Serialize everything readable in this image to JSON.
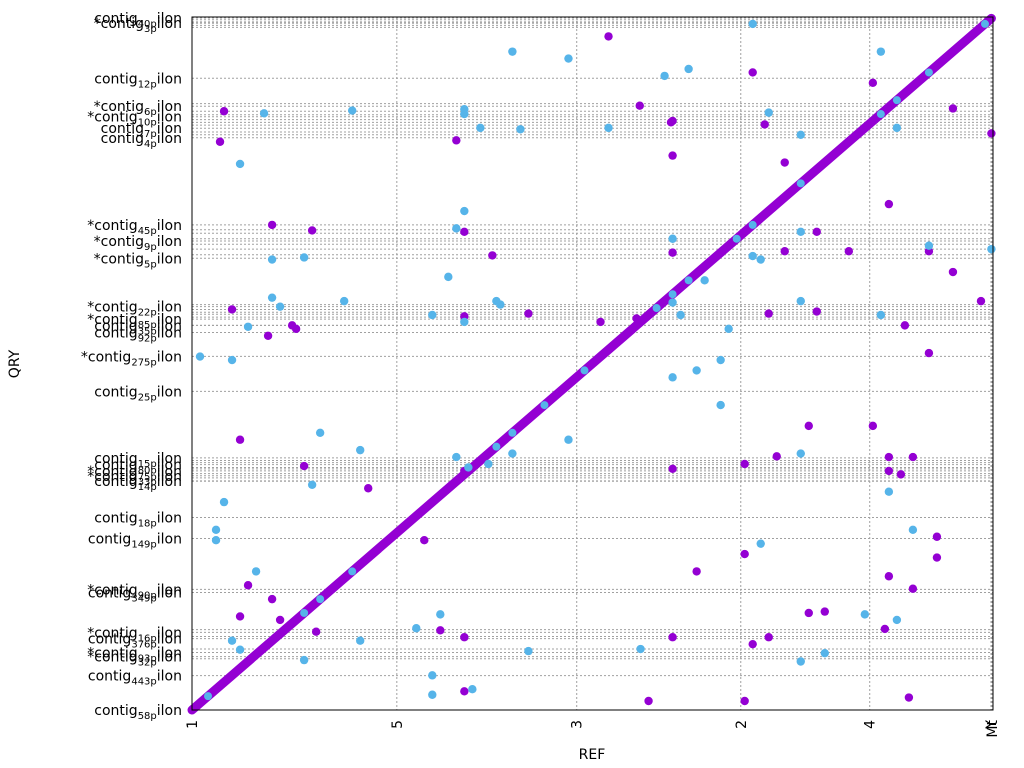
{
  "chart_data": {
    "type": "scatter",
    "xlabel": "REF",
    "ylabel": "QRY",
    "colors": {
      "forward": "#9400D3",
      "reverse": "#56B4E9"
    },
    "grid": true,
    "x_ticks": [
      {
        "label": "1",
        "pos": 0
      },
      {
        "label": "5",
        "pos": 0.2557
      },
      {
        "label": "3",
        "pos": 0.4803
      },
      {
        "label": "2",
        "pos": 0.6851
      },
      {
        "label": "4",
        "pos": 0.8461
      },
      {
        "label": "Y",
        "pos": 0.9976
      },
      {
        "label": "Mt",
        "pos": 0.999
      }
    ],
    "y_ticks": [
      {
        "main": "contig",
        "sub": "58",
        "tail": "ilon",
        "pos": 0.0
      },
      {
        "main": "contig",
        "sub": "443",
        "tail": "ilon",
        "pos": 0.0496
      },
      {
        "main": "*contig",
        "sub": "32",
        "tail": "ilon",
        "pos": 0.077
      },
      {
        "main": "*contig",
        "sub": "93",
        "tail": "ilon",
        "pos": 0.083
      },
      {
        "main": "contig",
        "sub": "376",
        "tail": "ilon",
        "pos": 0.103
      },
      {
        "main": "*contig",
        "sub": "16",
        "tail": "ilon",
        "pos": 0.112
      },
      {
        "main": "contig",
        "sub": "349",
        "tail": "ilon",
        "pos": 0.1696
      },
      {
        "main": "*contig",
        "sub": "90",
        "tail": "ilon",
        "pos": 0.174
      },
      {
        "main": "contig",
        "sub": "149",
        "tail": "ilon",
        "pos": 0.2474
      },
      {
        "main": "contig",
        "sub": "18",
        "tail": "ilon",
        "pos": 0.2777
      },
      {
        "main": "contig",
        "sub": "14",
        "tail": "ilon",
        "pos": 0.3306
      },
      {
        "main": "*contig",
        "sub": "33",
        "tail": "ilon",
        "pos": 0.338
      },
      {
        "main": "*contig",
        "sub": "75",
        "tail": "ilon",
        "pos": 0.345
      },
      {
        "main": "contig",
        "sub": "80",
        "tail": "ilon",
        "pos": 0.354
      },
      {
        "main": "contig",
        "sub": "15",
        "tail": "ilon",
        "pos": 0.3638
      },
      {
        "main": "contig",
        "sub": "25",
        "tail": "ilon",
        "pos": 0.4597
      },
      {
        "main": "*contig",
        "sub": "275",
        "tail": "ilon",
        "pos": 0.5102
      },
      {
        "main": "contig",
        "sub": "92",
        "tail": "ilon",
        "pos": 0.5448
      },
      {
        "main": "contig",
        "sub": "35",
        "tail": "ilon",
        "pos": 0.555
      },
      {
        "main": "*contig",
        "sub": "85",
        "tail": "ilon",
        "pos": 0.564
      },
      {
        "main": "*contig",
        "sub": "22",
        "tail": "ilon",
        "pos": 0.582
      },
      {
        "main": "*contig",
        "sub": "5",
        "tail": "ilon",
        "pos": 0.6518
      },
      {
        "main": "*contig",
        "sub": "9",
        "tail": "ilon",
        "pos": 0.6767
      },
      {
        "main": "*contig",
        "sub": "45",
        "tail": "ilon",
        "pos": 0.7
      },
      {
        "main": "contig",
        "sub": "4",
        "tail": "ilon",
        "pos": 0.8257
      },
      {
        "main": "contig",
        "sub": "7",
        "tail": "ilon",
        "pos": 0.8395
      },
      {
        "main": "*contig",
        "sub": "10",
        "tail": "ilon",
        "pos": 0.8561
      },
      {
        "main": "*contig",
        "sub": "6",
        "tail": "ilon",
        "pos": 0.8713
      },
      {
        "main": "contig",
        "sub": "12",
        "tail": "ilon",
        "pos": 0.9116
      },
      {
        "main": "*contig",
        "sub": "3",
        "tail": "ilon",
        "pos": 0.9916
      },
      {
        "main": "contig",
        "sub": "40",
        "tail": "ilon",
        "pos": 0.9985
      }
    ],
    "extra_grid_y": [
      0.074,
      0.088,
      0.106,
      0.116,
      0.33,
      0.335,
      0.341,
      0.348,
      0.35,
      0.357,
      0.36,
      0.555,
      0.567,
      0.571,
      0.574,
      0.578,
      0.585,
      0.657,
      0.665,
      0.672,
      0.68,
      0.688,
      0.693,
      0.83,
      0.834,
      0.844,
      0.848,
      0.852,
      0.859,
      0.864,
      0.875,
      0.985,
      0.988,
      0.991,
      0.993,
      0.996
    ],
    "extra_grid_x": [
      0.9976,
      0.999
    ],
    "diagonal": {
      "x0": 0.0,
      "y0": 0.0,
      "x1": 0.998,
      "y1": 0.998
    },
    "diagonal_segments_reverse": [
      0.02,
      0.14,
      0.16,
      0.2,
      0.38,
      0.4,
      0.44,
      0.49,
      0.58,
      0.6,
      0.62,
      0.68,
      0.7,
      0.76,
      0.86,
      0.88,
      0.92,
      0.99
    ],
    "forward_points": [
      [
        0.52,
        0.972
      ],
      [
        0.04,
        0.864
      ],
      [
        0.035,
        0.82
      ],
      [
        0.559,
        0.872
      ],
      [
        0.598,
        0.848
      ],
      [
        0.6,
        0.85
      ],
      [
        0.715,
        0.845
      ],
      [
        0.7,
        0.92
      ],
      [
        0.33,
        0.822
      ],
      [
        0.6,
        0.8
      ],
      [
        0.74,
        0.79
      ],
      [
        0.87,
        0.73
      ],
      [
        0.95,
        0.868
      ],
      [
        0.998,
        0.832
      ],
      [
        0.85,
        0.905
      ],
      [
        0.1,
        0.7
      ],
      [
        0.15,
        0.692
      ],
      [
        0.34,
        0.69
      ],
      [
        0.375,
        0.656
      ],
      [
        0.6,
        0.66
      ],
      [
        0.74,
        0.662
      ],
      [
        0.78,
        0.69
      ],
      [
        0.82,
        0.662
      ],
      [
        0.92,
        0.662
      ],
      [
        0.95,
        0.632
      ],
      [
        0.985,
        0.59
      ],
      [
        0.05,
        0.578
      ],
      [
        0.095,
        0.54
      ],
      [
        0.125,
        0.555
      ],
      [
        0.13,
        0.55
      ],
      [
        0.34,
        0.568
      ],
      [
        0.42,
        0.572
      ],
      [
        0.555,
        0.565
      ],
      [
        0.72,
        0.572
      ],
      [
        0.78,
        0.575
      ],
      [
        0.89,
        0.555
      ],
      [
        0.92,
        0.515
      ],
      [
        0.87,
        0.365
      ],
      [
        0.06,
        0.39
      ],
      [
        0.14,
        0.352
      ],
      [
        0.22,
        0.32
      ],
      [
        0.34,
        0.345
      ],
      [
        0.6,
        0.348
      ],
      [
        0.69,
        0.355
      ],
      [
        0.73,
        0.366
      ],
      [
        0.87,
        0.345
      ],
      [
        0.885,
        0.34
      ],
      [
        0.9,
        0.365
      ],
      [
        0.77,
        0.41
      ],
      [
        0.85,
        0.41
      ],
      [
        0.29,
        0.245
      ],
      [
        0.69,
        0.225
      ],
      [
        0.93,
        0.25
      ],
      [
        0.93,
        0.22
      ],
      [
        0.07,
        0.18
      ],
      [
        0.1,
        0.16
      ],
      [
        0.06,
        0.135
      ],
      [
        0.11,
        0.13
      ],
      [
        0.155,
        0.113
      ],
      [
        0.31,
        0.115
      ],
      [
        0.34,
        0.105
      ],
      [
        0.6,
        0.105
      ],
      [
        0.72,
        0.105
      ],
      [
        0.77,
        0.14
      ],
      [
        0.79,
        0.142
      ],
      [
        0.865,
        0.117
      ],
      [
        0.7,
        0.095
      ],
      [
        0.34,
        0.027
      ],
      [
        0.57,
        0.013
      ],
      [
        0.69,
        0.013
      ],
      [
        0.895,
        0.018
      ],
      [
        0.87,
        0.193
      ],
      [
        0.9,
        0.175
      ],
      [
        0.63,
        0.2
      ],
      [
        0.51,
        0.56
      ]
    ],
    "reverse_points": [
      [
        0.4,
        0.95
      ],
      [
        0.2,
        0.865
      ],
      [
        0.09,
        0.861
      ],
      [
        0.34,
        0.867
      ],
      [
        0.34,
        0.86
      ],
      [
        0.36,
        0.84
      ],
      [
        0.41,
        0.838
      ],
      [
        0.52,
        0.84
      ],
      [
        0.47,
        0.94
      ],
      [
        0.62,
        0.925
      ],
      [
        0.59,
        0.915
      ],
      [
        0.86,
        0.95
      ],
      [
        0.7,
        0.99
      ],
      [
        0.76,
        0.83
      ],
      [
        0.72,
        0.862
      ],
      [
        0.88,
        0.84
      ],
      [
        0.34,
        0.72
      ],
      [
        0.33,
        0.695
      ],
      [
        0.6,
        0.68
      ],
      [
        0.76,
        0.69
      ],
      [
        0.71,
        0.65
      ],
      [
        0.92,
        0.67
      ],
      [
        0.998,
        0.665
      ],
      [
        0.1,
        0.65
      ],
      [
        0.14,
        0.653
      ],
      [
        0.32,
        0.625
      ],
      [
        0.7,
        0.655
      ],
      [
        0.06,
        0.788
      ],
      [
        0.1,
        0.595
      ],
      [
        0.11,
        0.582
      ],
      [
        0.19,
        0.59
      ],
      [
        0.3,
        0.57
      ],
      [
        0.34,
        0.56
      ],
      [
        0.38,
        0.59
      ],
      [
        0.385,
        0.585
      ],
      [
        0.6,
        0.588
      ],
      [
        0.61,
        0.57
      ],
      [
        0.67,
        0.55
      ],
      [
        0.64,
        0.62
      ],
      [
        0.76,
        0.59
      ],
      [
        0.86,
        0.57
      ],
      [
        0.07,
        0.553
      ],
      [
        0.05,
        0.505
      ],
      [
        0.01,
        0.51
      ],
      [
        0.6,
        0.48
      ],
      [
        0.63,
        0.49
      ],
      [
        0.66,
        0.505
      ],
      [
        0.66,
        0.44
      ],
      [
        0.76,
        0.37
      ],
      [
        0.47,
        0.39
      ],
      [
        0.16,
        0.4
      ],
      [
        0.21,
        0.375
      ],
      [
        0.33,
        0.365
      ],
      [
        0.4,
        0.37
      ],
      [
        0.37,
        0.355
      ],
      [
        0.345,
        0.35
      ],
      [
        0.04,
        0.3
      ],
      [
        0.15,
        0.325
      ],
      [
        0.87,
        0.315
      ],
      [
        0.9,
        0.26
      ],
      [
        0.03,
        0.26
      ],
      [
        0.03,
        0.245
      ],
      [
        0.71,
        0.24
      ],
      [
        0.05,
        0.1
      ],
      [
        0.14,
        0.072
      ],
      [
        0.21,
        0.1
      ],
      [
        0.28,
        0.118
      ],
      [
        0.31,
        0.138
      ],
      [
        0.84,
        0.138
      ],
      [
        0.88,
        0.13
      ],
      [
        0.3,
        0.022
      ],
      [
        0.06,
        0.087
      ],
      [
        0.35,
        0.03
      ],
      [
        0.42,
        0.085
      ],
      [
        0.56,
        0.088
      ],
      [
        0.76,
        0.07
      ],
      [
        0.79,
        0.082
      ],
      [
        0.3,
        0.05
      ],
      [
        0.08,
        0.2
      ]
    ]
  }
}
